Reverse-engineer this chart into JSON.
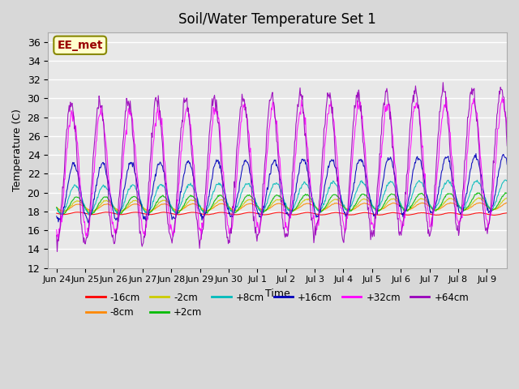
{
  "title": "Soil/Water Temperature Set 1",
  "xlabel": "Time",
  "ylabel": "Temperature (C)",
  "ylim": [
    12,
    37
  ],
  "yticks": [
    12,
    14,
    16,
    18,
    20,
    22,
    24,
    26,
    28,
    30,
    32,
    34,
    36
  ],
  "plot_bg_color": "#e8e8e8",
  "fig_bg_color": "#d8d8d8",
  "annotation_text": "EE_met",
  "annotation_bg": "#ffffcc",
  "annotation_border": "#888800",
  "annotation_text_color": "#990000",
  "xticklabels": [
    "Jun 24",
    "Jun 25",
    "Jun 26",
    "Jun 27",
    "Jun 28",
    "Jun 29",
    "Jun 30",
    "Jul 1",
    "Jul 2",
    "Jul 3",
    "Jul 4",
    "Jul 5",
    "Jul 6",
    "Jul 7",
    "Jul 8",
    "Jul 9"
  ],
  "n_days": 16,
  "samples_per_day": 48,
  "series_params": {
    "-16cm": {
      "color": "#ff0000",
      "base": 17.8,
      "amp": 0.12,
      "phase": 0.5,
      "trend": -0.005
    },
    "-8cm": {
      "color": "#ff8800",
      "base": 18.4,
      "amp": 0.35,
      "phase": 0.5,
      "trend": 0.01
    },
    "-2cm": {
      "color": "#cccc00",
      "base": 18.5,
      "amp": 0.6,
      "phase": 0.48,
      "trend": 0.02
    },
    "+2cm": {
      "color": "#00bb00",
      "base": 18.6,
      "amp": 0.9,
      "phase": 0.45,
      "trend": 0.03
    },
    "+8cm": {
      "color": "#00bbbb",
      "base": 19.2,
      "amp": 1.5,
      "phase": 0.4,
      "trend": 0.04
    },
    "+16cm": {
      "color": "#0000bb",
      "base": 20.0,
      "amp": 3.0,
      "phase": 0.35,
      "trend": 0.06
    },
    "+32cm": {
      "color": "#ff00ff",
      "base": 22.0,
      "amp": 6.5,
      "phase": 0.3,
      "trend": 0.08
    },
    "+64cm": {
      "color": "#9900bb",
      "base": 22.0,
      "amp": 7.5,
      "phase": 0.25,
      "trend": 0.1
    }
  },
  "legend_order": [
    "-16cm",
    "-8cm",
    "-2cm",
    "+2cm",
    "+8cm",
    "+16cm",
    "+32cm",
    "+64cm"
  ]
}
